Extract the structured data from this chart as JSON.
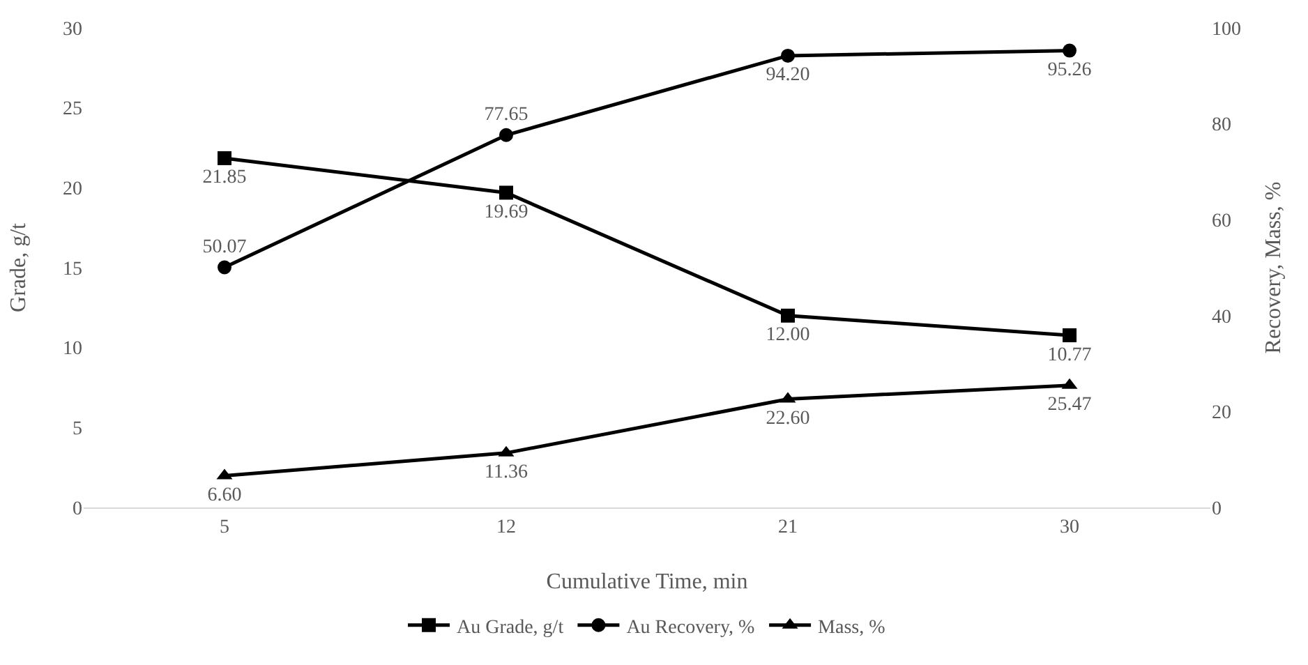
{
  "chart_data": {
    "type": "line",
    "xlabel": "Cumulative Time, min",
    "ylabel": "Grade, g/t",
    "y2label": "Recovery, Mass, %",
    "categories": [
      "5",
      "12",
      "21",
      "30"
    ],
    "series": [
      {
        "name": "Au Grade, g/t",
        "color": "#000000",
        "marker": "square",
        "values": [
          21.85,
          19.69,
          12.0,
          10.77
        ],
        "value_labels": [
          "21.85",
          "19.69",
          "12.00",
          "10.77"
        ]
      },
      {
        "name": "Au Recovery, %",
        "color": "#000000",
        "marker": "circle",
        "axis": "y2",
        "values": [
          50.07,
          77.65,
          94.2,
          95.26
        ],
        "value_labels": [
          "50.07",
          "77.65",
          "94.20",
          "95.26"
        ]
      },
      {
        "name": "Mass, %",
        "color": "#000000",
        "marker": "triangle",
        "axis": "y2",
        "values": [
          6.6,
          11.36,
          22.6,
          25.47
        ],
        "value_labels": [
          "6.60",
          "11.36",
          "22.60",
          "25.47"
        ]
      }
    ],
    "ylim": [
      0,
      30
    ],
    "yticks": [
      0,
      5,
      10,
      15,
      20,
      25,
      30
    ],
    "y2lim": [
      0,
      100
    ],
    "y2ticks": [
      0,
      20,
      40,
      60,
      80,
      100
    ],
    "grid": false,
    "legend": "bottom",
    "line_style": "solid"
  }
}
